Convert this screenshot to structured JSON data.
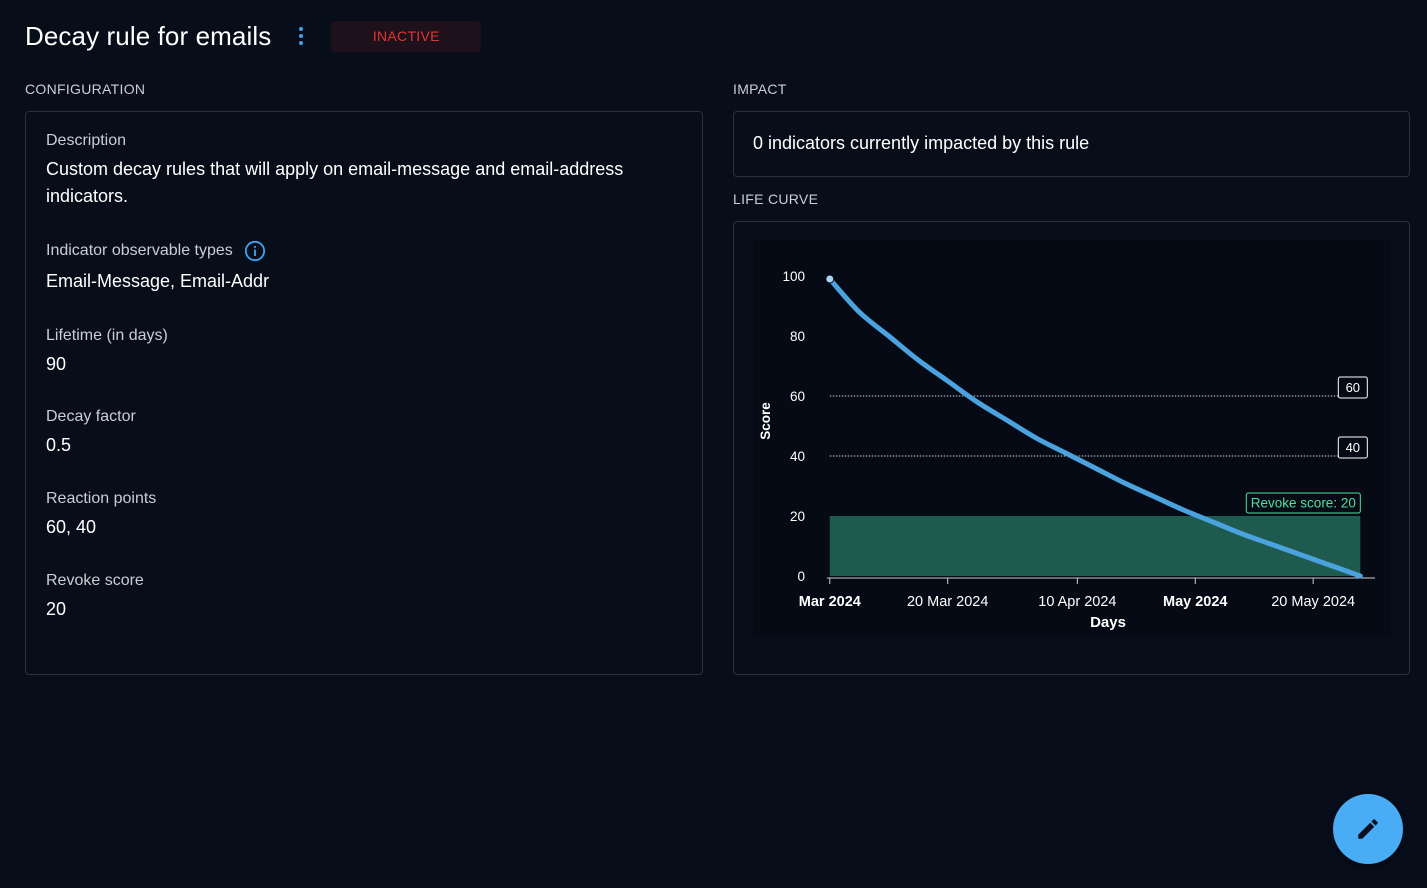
{
  "header": {
    "title": "Decay rule for emails",
    "status_badge": "INACTIVE",
    "menu_icon": "kebab-vertical-icon"
  },
  "configuration": {
    "section_label": "CONFIGURATION",
    "description_label": "Description",
    "description_value": "Custom decay rules that will apply on email-message and email-address indicators.",
    "observable_types_label": "Indicator observable types",
    "observable_types_icon": "info-icon",
    "observable_types_value": "Email-Message, Email-Addr",
    "lifetime_label": "Lifetime (in days)",
    "lifetime_value": "90",
    "decay_factor_label": "Decay factor",
    "decay_factor_value": "0.5",
    "reaction_points_label": "Reaction points",
    "reaction_points_value": "60, 40",
    "revoke_score_label": "Revoke score",
    "revoke_score_value": "20"
  },
  "impact": {
    "section_label": "IMPACT",
    "text": "0 indicators currently impacted by this rule"
  },
  "life_curve": {
    "section_label": "LIFE CURVE"
  },
  "chart_data": {
    "type": "line",
    "title": "",
    "xlabel": "Days",
    "ylabel": "Score",
    "x_ticks": [
      "Mar 2024",
      "20 Mar 2024",
      "10 Apr 2024",
      "May 2024",
      "20 May 2024"
    ],
    "x_ticks_bold": [
      true,
      false,
      false,
      true,
      false
    ],
    "x_tick_days": [
      0,
      20,
      42,
      62,
      82
    ],
    "y_ticks": [
      0,
      20,
      40,
      60,
      80,
      100
    ],
    "xlim": [
      -2,
      93
    ],
    "ylim": [
      0,
      100
    ],
    "series": [
      {
        "name": "",
        "color": "#4aa3df",
        "x": [
          0,
          5,
          10,
          15,
          20,
          25,
          30,
          35,
          40,
          45,
          50,
          55,
          60,
          65,
          70,
          75,
          80,
          85,
          90
        ],
        "y": [
          99,
          88,
          80,
          72,
          65,
          58,
          52,
          46,
          41,
          36,
          31,
          26.5,
          22,
          18,
          14,
          10.5,
          7,
          3.5,
          0
        ]
      }
    ],
    "reaction_points": [
      {
        "value": 60,
        "label": "60"
      },
      {
        "value": 40,
        "label": "40"
      }
    ],
    "revoke_score": {
      "value": 20,
      "label": "Revoke score: 20",
      "color": "#1f5a4e",
      "label_color": "#4ee0a0"
    },
    "grid": false
  },
  "fab": {
    "icon": "pencil-icon"
  }
}
